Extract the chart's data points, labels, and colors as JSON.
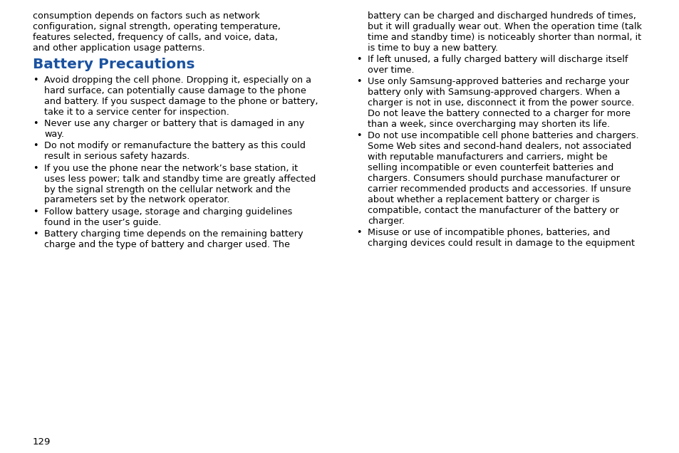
{
  "bg_color": "#ffffff",
  "text_color": "#000000",
  "heading_color": "#1a52a0",
  "font_size_body": 9.2,
  "font_size_heading": 14.5,
  "font_size_page": 9.5,
  "page_number": "129",
  "intro_lines": [
    "consumption depends on factors such as network",
    "configuration, signal strength, operating temperature,",
    "features selected, frequency of calls, and voice, data,",
    "and other application usage patterns."
  ],
  "heading": "Battery Precautions",
  "left_bullets": [
    [
      "Avoid dropping the cell phone. Dropping it, especially on a",
      "hard surface, can potentially cause damage to the phone",
      "and battery. If you suspect damage to the phone or battery,",
      "take it to a service center for inspection."
    ],
    [
      "Never use any charger or battery that is damaged in any",
      "way."
    ],
    [
      "Do not modify or remanufacture the battery as this could",
      "result in serious safety hazards."
    ],
    [
      "If you use the phone near the network’s base station, it",
      "uses less power; talk and standby time are greatly affected",
      "by the signal strength on the cellular network and the",
      "parameters set by the network operator."
    ],
    [
      "Follow battery usage, storage and charging guidelines",
      "found in the user’s guide."
    ],
    [
      "Battery charging time depends on the remaining battery",
      "charge and the type of battery and charger used. The"
    ]
  ],
  "right_cont_lines": [
    "battery can be charged and discharged hundreds of times,",
    "but it will gradually wear out. When the operation time (talk",
    "time and standby time) is noticeably shorter than normal, it",
    "is time to buy a new battery."
  ],
  "right_bullets": [
    [
      "If left unused, a fully charged battery will discharge itself",
      "over time."
    ],
    [
      "Use only Samsung-approved batteries and recharge your",
      "battery only with Samsung-approved chargers. When a",
      "charger is not in use, disconnect it from the power source.",
      "Do not leave the battery connected to a charger for more",
      "than a week, since overcharging may shorten its life."
    ],
    [
      "Do not use incompatible cell phone batteries and chargers.",
      "Some Web sites and second-hand dealers, not associated",
      "with reputable manufacturers and carriers, might be",
      "selling incompatible or even counterfeit batteries and",
      "chargers. Consumers should purchase manufacturer or",
      "carrier recommended products and accessories. If unsure",
      "about whether a replacement battery or charger is",
      "compatible, contact the manufacturer of the battery or",
      "charger."
    ],
    [
      "Misuse or use of incompatible phones, batteries, and",
      "charging devices could result in damage to the equipment"
    ]
  ]
}
